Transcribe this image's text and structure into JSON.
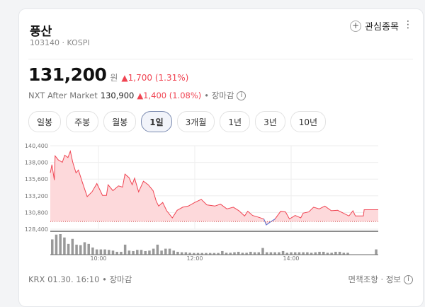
{
  "header": {
    "title": "풍산",
    "code": "103140",
    "market": "KOSPI",
    "watch_label": "관심종목",
    "plus_icon": "plus-icon",
    "more_icon": "more-vertical-icon"
  },
  "quote": {
    "price": "131,200",
    "unit": "원",
    "change": "▲1,700 (1.31%)",
    "change_color": "#f04452"
  },
  "nxt": {
    "label": "NXT After Market",
    "price": "130,900",
    "change": "▲1,400 (1.08%)",
    "status": "• 장마감",
    "info_icon": "info-icon"
  },
  "tabs": [
    {
      "label": "일봉"
    },
    {
      "label": "주봉"
    },
    {
      "label": "월봉"
    },
    {
      "label": "1일",
      "active": true
    },
    {
      "label": "3개월"
    },
    {
      "label": "1년"
    },
    {
      "label": "3년"
    },
    {
      "label": "10년"
    }
  ],
  "chart_data": {
    "type": "area",
    "y_ticks": [
      "140,400",
      "138,000",
      "135,600",
      "133,200",
      "130,800",
      "128,400"
    ],
    "ylim": [
      128400,
      140400
    ],
    "x_ticks": [
      "10:00",
      "12:00",
      "14:00"
    ],
    "previous_close": 129500,
    "up_color": "#f04452",
    "down_color": "#4c7be0",
    "grid": true,
    "series": {
      "x": [
        "09:00",
        "09:02",
        "09:05",
        "09:06",
        "09:10",
        "09:15",
        "09:18",
        "09:22",
        "09:25",
        "09:28",
        "09:32",
        "09:35",
        "09:40",
        "09:46",
        "09:52",
        "09:58",
        "10:05",
        "10:10",
        "10:12",
        "10:18",
        "10:25",
        "10:30",
        "10:33",
        "10:38",
        "10:42",
        "10:45",
        "10:50",
        "10:56",
        "11:02",
        "11:08",
        "11:12",
        "11:15",
        "11:20",
        "11:25",
        "11:32",
        "11:38",
        "11:45",
        "11:52",
        "12:00",
        "12:08",
        "12:15",
        "12:25",
        "12:32",
        "12:40",
        "12:48",
        "12:55",
        "13:02",
        "13:06",
        "13:12",
        "13:20",
        "13:26",
        "13:29",
        "13:33",
        "13:40",
        "13:47",
        "13:53",
        "13:58",
        "14:05",
        "14:12",
        "14:15",
        "14:22",
        "14:28",
        "14:35",
        "14:42",
        "14:50",
        "14:58",
        "15:05",
        "15:12",
        "15:17",
        "15:20",
        "15:30",
        "15:31",
        "15:49"
      ],
      "y": [
        136490,
        137680,
        135470,
        138940,
        138360,
        138020,
        139040,
        138700,
        139620,
        138020,
        136490,
        136900,
        135130,
        133090,
        133770,
        134960,
        133260,
        133260,
        134790,
        133940,
        134620,
        134450,
        136320,
        135810,
        134790,
        135740,
        133770,
        135300,
        134790,
        133940,
        132410,
        131730,
        132240,
        131050,
        130030,
        131120,
        131560,
        131730,
        132240,
        132690,
        131900,
        131730,
        132000,
        131320,
        131560,
        131050,
        130300,
        130980,
        130370,
        130100,
        129860,
        129010,
        129350,
        129860,
        130980,
        130880,
        129860,
        130370,
        130030,
        130710,
        130880,
        131560,
        131320,
        131730,
        131050,
        131120,
        130710,
        130300,
        131050,
        130300,
        130300,
        131200,
        131200
      ]
    },
    "volume": [
      64,
      84,
      86,
      72,
      45,
      66,
      42,
      40,
      52,
      45,
      30,
      22,
      22,
      22,
      20,
      17,
      12,
      12,
      42,
      17,
      15,
      20,
      20,
      15,
      17,
      25,
      42,
      17,
      25,
      25,
      17,
      12,
      10,
      10,
      8,
      7,
      7,
      7,
      7,
      7,
      7,
      7,
      15,
      8,
      8,
      10,
      12,
      8,
      8,
      12,
      10,
      10,
      28,
      10,
      10,
      10,
      10,
      15,
      8,
      10,
      10,
      10,
      10,
      10,
      8,
      10,
      12,
      12,
      8,
      8,
      12,
      12,
      8,
      8,
      0,
      0,
      0,
      0,
      0,
      0,
      22
    ]
  },
  "footer": {
    "left": "KRX 01.30. 16:10 • 장마감",
    "right": "면책조항 · 정보"
  }
}
